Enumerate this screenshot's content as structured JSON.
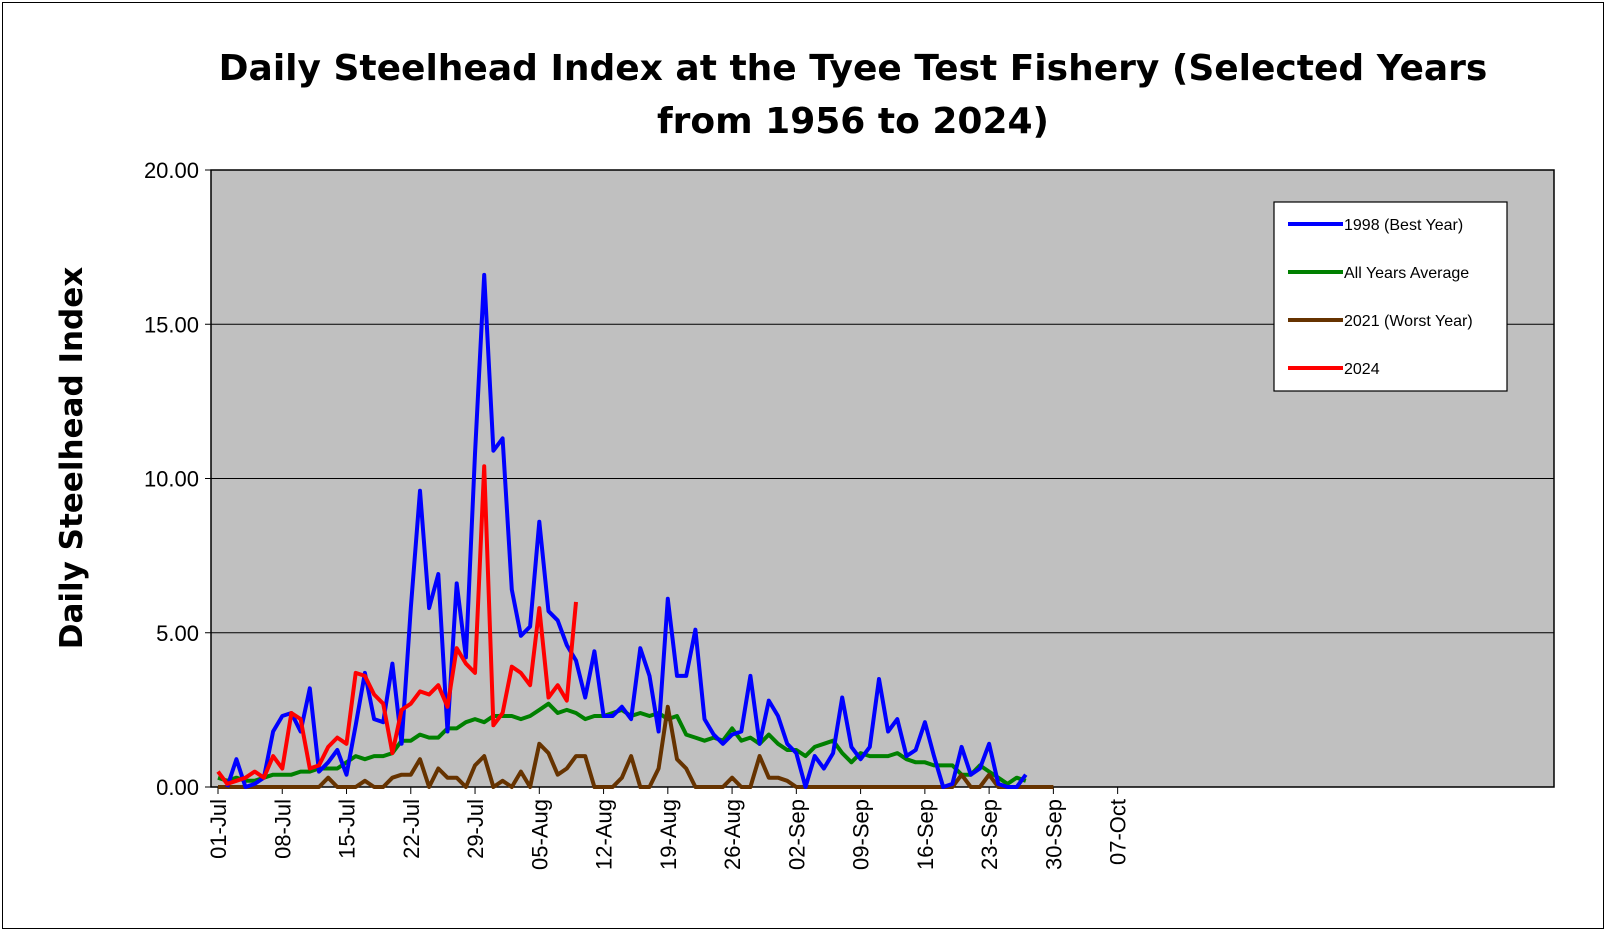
{
  "chart_data": {
    "type": "line",
    "title_line1": "Daily Steelhead Index at the Tyee Test Fishery (Selected Years",
    "title_line2": "from 1956 to 2024)",
    "xlabel": "",
    "ylabel": "Daily Steelhead Index",
    "ylim": [
      0,
      20
    ],
    "yticks": [
      "0.00",
      "5.00",
      "10.00",
      "15.00",
      "20.00"
    ],
    "xticks": [
      "01-Jul",
      "08-Jul",
      "15-Jul",
      "22-Jul",
      "29-Jul",
      "05-Aug",
      "12-Aug",
      "19-Aug",
      "26-Aug",
      "02-Sep",
      "09-Sep",
      "16-Sep",
      "23-Sep",
      "30-Sep",
      "07-Oct"
    ],
    "x_start": "01-Jul",
    "x_range_days": [
      0,
      103
    ],
    "grid": "horizontal",
    "plot_background": "#c0c0c0",
    "legend_position": "top-right",
    "series": [
      {
        "name": "1998 (Best Year)",
        "color": "#0000ff",
        "values": [
          0.0,
          0.9,
          0.0,
          0.1,
          0.3,
          1.8,
          2.3,
          2.4,
          1.8,
          3.2,
          0.5,
          0.8,
          1.2,
          0.4,
          2.0,
          3.7,
          2.2,
          2.1,
          4.0,
          1.4,
          5.8,
          9.6,
          5.8,
          6.9,
          1.8,
          6.6,
          4.2,
          10.8,
          16.6,
          10.9,
          11.3,
          6.4,
          4.9,
          5.2,
          8.6,
          5.7,
          5.4,
          4.6,
          4.1,
          2.9,
          4.4,
          2.3,
          2.3,
          2.6,
          2.2,
          4.5,
          3.6,
          1.8,
          6.1,
          3.6,
          3.6,
          5.1,
          2.2,
          1.7,
          1.4,
          1.7,
          1.8,
          3.6,
          1.4,
          2.8,
          2.3,
          1.4,
          1.1,
          0.0,
          1.0,
          0.6,
          1.1,
          2.9,
          1.3,
          0.9,
          1.3,
          3.5,
          1.8,
          2.2,
          1.0,
          1.2,
          2.1,
          1.0,
          0.0,
          0.1,
          1.3,
          0.4,
          0.6,
          1.4,
          0.1,
          0.0,
          0.0,
          0.4
        ],
        "x_offset": 1
      },
      {
        "name": "All Years Average",
        "color": "#008000",
        "values": [
          0.3,
          0.2,
          0.3,
          0.2,
          0.2,
          0.3,
          0.4,
          0.4,
          0.4,
          0.5,
          0.5,
          0.6,
          0.6,
          0.6,
          0.8,
          1.0,
          0.9,
          1.0,
          1.0,
          1.1,
          1.5,
          1.5,
          1.7,
          1.6,
          1.6,
          1.9,
          1.9,
          2.1,
          2.2,
          2.1,
          2.3,
          2.3,
          2.3,
          2.2,
          2.3,
          2.5,
          2.7,
          2.4,
          2.5,
          2.4,
          2.2,
          2.3,
          2.3,
          2.4,
          2.5,
          2.3,
          2.4,
          2.3,
          2.4,
          2.2,
          2.3,
          1.7,
          1.6,
          1.5,
          1.6,
          1.5,
          1.9,
          1.5,
          1.6,
          1.4,
          1.7,
          1.4,
          1.2,
          1.2,
          1.0,
          1.3,
          1.4,
          1.5,
          1.1,
          0.8,
          1.1,
          1.0,
          1.0,
          1.0,
          1.1,
          0.9,
          0.8,
          0.8,
          0.7,
          0.7,
          0.7,
          0.4,
          0.4,
          0.7,
          0.5,
          0.3,
          0.1,
          0.3,
          0.2
        ],
        "x_offset": 0
      },
      {
        "name": "2021 (Worst Year)",
        "color": "#663300",
        "values": [
          0.0,
          0.0,
          0.0,
          0.0,
          0.0,
          0.0,
          0.0,
          0.0,
          0.0,
          0.0,
          0.0,
          0.0,
          0.3,
          0.0,
          0.0,
          0.0,
          0.2,
          0.0,
          0.0,
          0.3,
          0.4,
          0.4,
          0.9,
          0.0,
          0.6,
          0.3,
          0.3,
          0.0,
          0.7,
          1.0,
          0.0,
          0.2,
          0.0,
          0.5,
          0.0,
          1.4,
          1.1,
          0.4,
          0.6,
          1.0,
          1.0,
          0.0,
          0.0,
          0.0,
          0.3,
          1.0,
          0.0,
          0.0,
          0.6,
          2.6,
          0.9,
          0.6,
          0.0,
          0.0,
          0.0,
          0.0,
          0.3,
          0.0,
          0.0,
          1.0,
          0.3,
          0.3,
          0.2,
          0.0,
          0.0,
          0.0,
          0.0,
          0.0,
          0.0,
          0.0,
          0.0,
          0.0,
          0.0,
          0.0,
          0.0,
          0.0,
          0.0,
          0.0,
          0.0,
          0.0,
          0.0,
          0.4,
          0.0,
          0.0,
          0.4,
          0.0,
          0.0,
          0.0,
          0.0,
          0.0,
          0.0,
          0.0
        ],
        "x_offset": 0
      },
      {
        "name": "2024",
        "color": "#ff0000",
        "values": [
          0.5,
          0.1,
          0.2,
          0.3,
          0.5,
          0.3,
          1.0,
          0.6,
          2.4,
          2.2,
          0.6,
          0.7,
          1.3,
          1.6,
          1.4,
          3.7,
          3.6,
          3.0,
          2.7,
          1.1,
          2.5,
          2.7,
          3.1,
          3.0,
          3.3,
          2.6,
          4.5,
          4.0,
          3.7,
          10.4,
          2.0,
          2.4,
          3.9,
          3.7,
          3.3,
          5.8,
          2.9,
          3.3,
          2.8,
          6.0
        ],
        "x_offset": 0
      }
    ]
  }
}
